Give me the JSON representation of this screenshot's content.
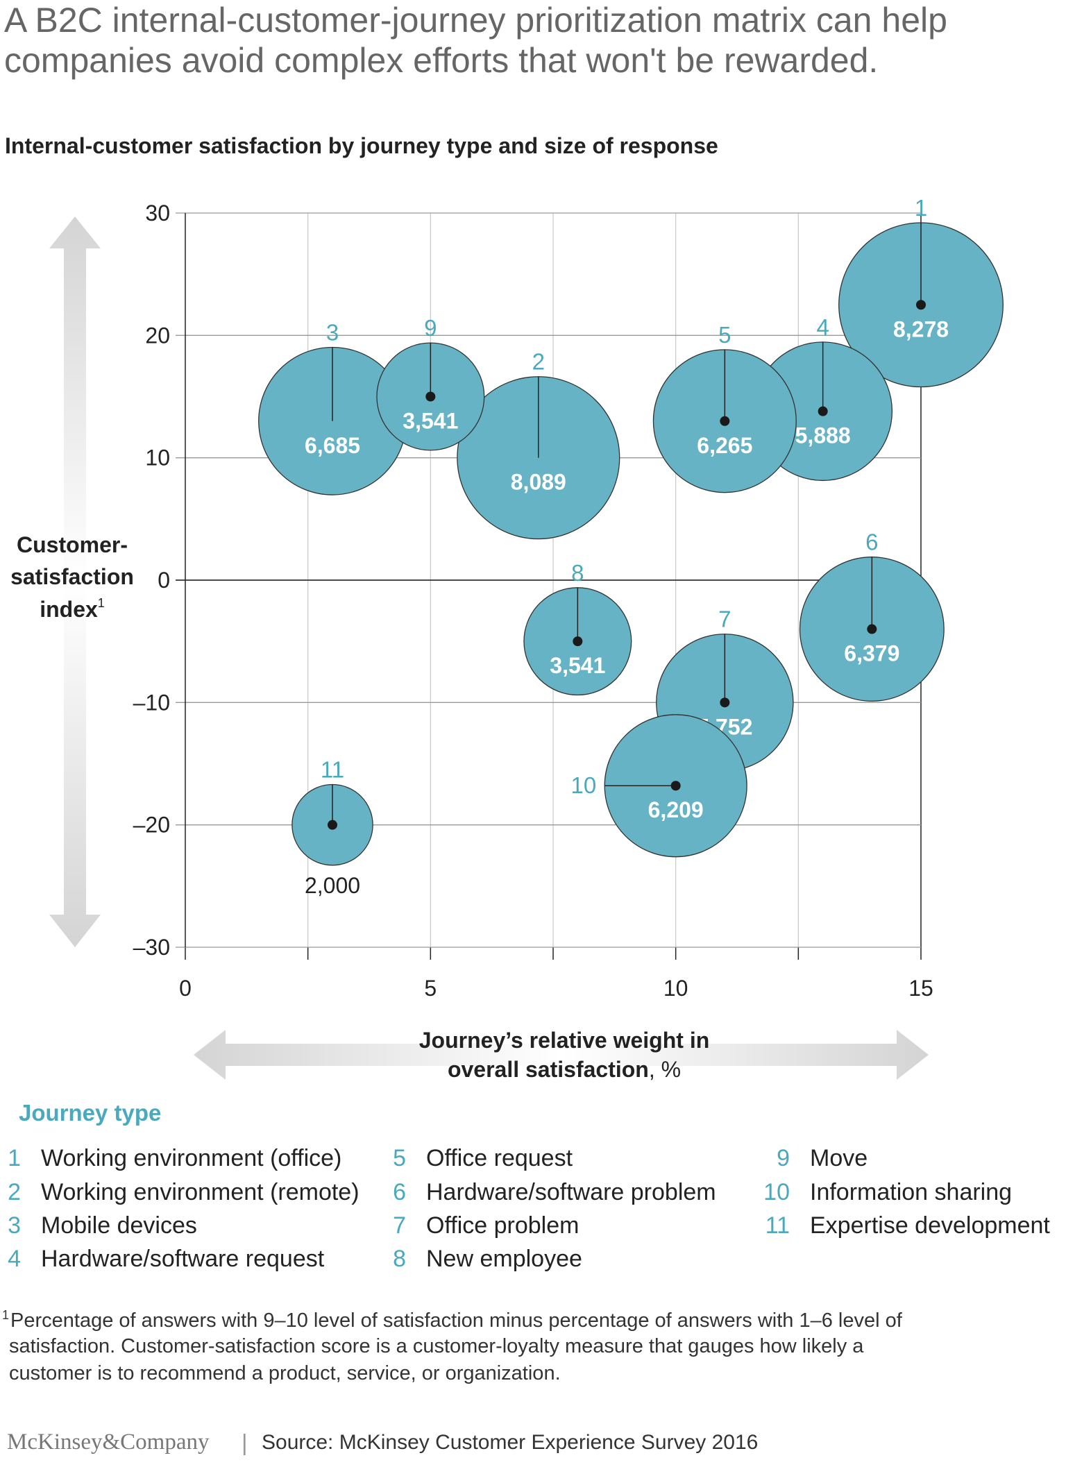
{
  "title": [
    "A B2C internal-customer-journey prioritization matrix can help",
    "companies avoid complex efforts that won't be rewarded."
  ],
  "subtitle": "Internal-customer satisfaction by journey type and size of response",
  "chart_data": {
    "type": "scatter",
    "subtype": "bubble",
    "title": "Internal-customer satisfaction by journey type and size of response",
    "xlabel": [
      "Journey’s relative weight in",
      "overall satisfaction, %"
    ],
    "ylabel": [
      "Customer-",
      "satisfaction",
      "index"
    ],
    "ylabel_sup": "1",
    "xlim": [
      0,
      15
    ],
    "ylim": [
      -30,
      30
    ],
    "xticks": [
      0,
      5,
      10,
      15
    ],
    "yticks": [
      30,
      20,
      10,
      0,
      -10,
      -20,
      -30
    ],
    "ytick_labels": [
      "30",
      "20",
      "10",
      "0",
      "–10",
      "–20",
      "–30"
    ],
    "grid": true,
    "bubble_color": "#65b3c4",
    "label_color": "#4aa9bd",
    "points": [
      {
        "id": "1",
        "x": 15,
        "y": 22.5,
        "size": 8278,
        "size_label": "8,278"
      },
      {
        "id": "2",
        "x": 7.2,
        "y": 10,
        "size": 8089,
        "size_label": "8,089"
      },
      {
        "id": "3",
        "x": 3,
        "y": 13,
        "size": 6685,
        "size_label": "6,685"
      },
      {
        "id": "9",
        "x": 5,
        "y": 15,
        "size": 3541,
        "size_label": "3,541"
      },
      {
        "id": "4",
        "x": 13,
        "y": 13.8,
        "size": 5888,
        "size_label": "5,888"
      },
      {
        "id": "5",
        "x": 11,
        "y": 13,
        "size": 6265,
        "size_label": "6,265"
      },
      {
        "id": "6",
        "x": 14,
        "y": -4,
        "size": 6379,
        "size_label": "6,379"
      },
      {
        "id": "8",
        "x": 8,
        "y": -5,
        "size": 3541,
        "size_label": "3,541"
      },
      {
        "id": "7",
        "x": 11,
        "y": -10,
        "size": 5752,
        "size_label": "5,752"
      },
      {
        "id": "10",
        "x": 10,
        "y": -16.8,
        "size": 6209,
        "size_label": "6,209"
      },
      {
        "id": "11",
        "x": 3,
        "y": -20,
        "size": 2000,
        "size_label": "2,000"
      }
    ]
  },
  "legend": {
    "title": "Journey type",
    "items": [
      {
        "num": "1",
        "label": "Working environment (office)"
      },
      {
        "num": "2",
        "label": "Working environment (remote)"
      },
      {
        "num": "3",
        "label": "Mobile devices"
      },
      {
        "num": "4",
        "label": "Hardware/software request"
      },
      {
        "num": "5",
        "label": "Office request"
      },
      {
        "num": "6",
        "label": "Hardware/software problem"
      },
      {
        "num": "7",
        "label": "Office problem"
      },
      {
        "num": "8",
        "label": "New employee"
      },
      {
        "num": "9",
        "label": "Move"
      },
      {
        "num": "10",
        "label": "Information sharing"
      },
      {
        "num": "11",
        "label": "Expertise development"
      }
    ]
  },
  "footnote": {
    "mark": "1",
    "lines": [
      "Percentage of answers with 9–10 level of satisfaction minus percentage of answers with 1–6 level of",
      "satisfaction. Customer-satisfaction score is a customer-loyalty measure that gauges how likely a",
      "customer is to recommend a product, service, or organization."
    ]
  },
  "footer": {
    "logo": "McKinsey&Company",
    "separator": "|",
    "source": "Source: McKinsey Customer Experience Survey 2016"
  }
}
